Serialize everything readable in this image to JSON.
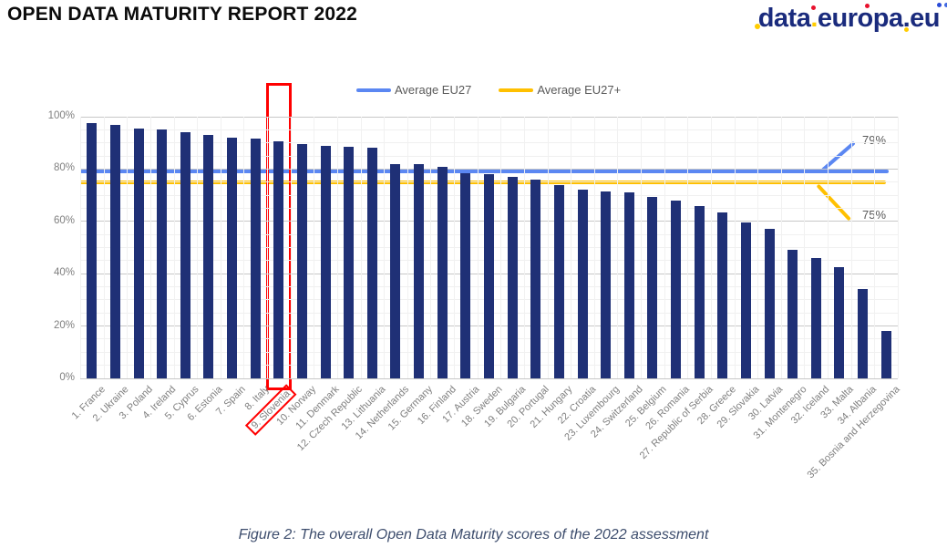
{
  "header": {
    "title": "OPEN DATA MATURITY REPORT 2022"
  },
  "logo": {
    "part1": "data",
    "dot1": ".",
    "part2": "europa",
    "dot2": ".",
    "part3": "eu"
  },
  "caption": {
    "text": "Figure 2: The overall Open Data Maturity scores of the 2022 assessment"
  },
  "highlight": {
    "label": "9. Slovenia",
    "index": 8,
    "color": "#FF0000"
  },
  "chart_data": {
    "type": "bar",
    "title": "",
    "xlabel": "",
    "ylabel": "",
    "ylim": [
      0,
      100
    ],
    "y_ticks": [
      "0%",
      "20%",
      "40%",
      "60%",
      "80%",
      "100%"
    ],
    "grid": "horizontal major every 20%, minor every 5%, faint vertical category separators",
    "legend_position": "top-center",
    "bar_color": "#1F3076",
    "categories": [
      "1. France",
      "2. Ukraine",
      "3. Poland",
      "4. Ireland",
      "5. Cyprus",
      "6. Estonia",
      "7. Spain",
      "8. Italy",
      "9. Slovenia",
      "10. Norway",
      "11. Denmark",
      "12. Czech Republic",
      "13. Lithuania",
      "14. Netherlands",
      "15. Germany",
      "16. Finland",
      "17. Austria",
      "18. Sweden",
      "19. Bulgaria",
      "20. Portugal",
      "21. Hungary",
      "22. Croatia",
      "23. Luxembourg",
      "24. Switzerland",
      "25. Belgium",
      "26. Romania",
      "27. Republic of Serbia",
      "28. Greece",
      "29. Slovakia",
      "30. Latvia",
      "31. Montenegro",
      "32. Iceland",
      "33. Malta",
      "34. Albania",
      "35. Bosnia and Herzegovina"
    ],
    "values": [
      97.5,
      97,
      95.5,
      95,
      94,
      93,
      92,
      91.5,
      90.5,
      89.5,
      89,
      88.5,
      88,
      82,
      82,
      81,
      78.5,
      78,
      77,
      76,
      74,
      72,
      71.5,
      71,
      69.5,
      68,
      66,
      63.5,
      59.5,
      57,
      49,
      46,
      42.5,
      34,
      18
    ],
    "averages": [
      {
        "name": "Average EU27",
        "value": 79,
        "annotation": "79%",
        "color": "#5B87F2"
      },
      {
        "name": "Average EU27+",
        "value": 75,
        "annotation": "75%",
        "color": "#FFC000"
      }
    ]
  }
}
